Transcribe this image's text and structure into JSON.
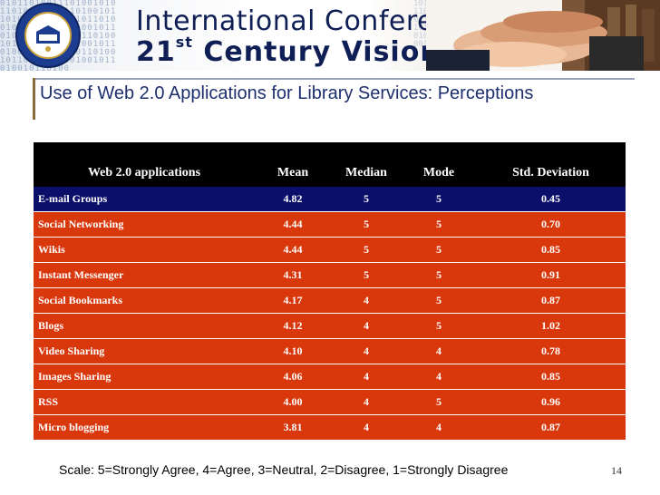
{
  "header": {
    "conference_line1": "International Conference on",
    "conference_line2_num": "21",
    "conference_line2_sup": "st",
    "conference_line2_rest": "Century Vision"
  },
  "slide": {
    "title": "Use of Web 2.0 Applications for Library Services: Perceptions",
    "page_number": "14",
    "scale_note": "Scale: 5=Strongly Agree, 4=Agree, 3=Neutral, 2=Disagree, 1=Strongly Disagree"
  },
  "table": {
    "columns": [
      "Web 2.0 applications",
      "Mean",
      "Median",
      "Mode",
      "Std. Deviation"
    ],
    "rows": [
      [
        "E-mail Groups",
        "4.82",
        "5",
        "5",
        "0.45"
      ],
      [
        "Social Networking",
        "4.44",
        "5",
        "5",
        "0.70"
      ],
      [
        "Wikis",
        "4.44",
        "5",
        "5",
        "0.85"
      ],
      [
        "Instant Messenger",
        "4.31",
        "5",
        "5",
        "0.91"
      ],
      [
        "Social Bookmarks",
        "4.17",
        "4",
        "5",
        "0.87"
      ],
      [
        "Blogs",
        "4.12",
        "4",
        "5",
        "1.02"
      ],
      [
        "Video Sharing",
        "4.10",
        "4",
        "4",
        "0.78"
      ],
      [
        "Images Sharing",
        "4.06",
        "4",
        "4",
        "0.85"
      ],
      [
        "RSS",
        "4.00",
        "4",
        "5",
        "0.96"
      ],
      [
        "Micro blogging",
        "3.81",
        "4",
        "4",
        "0.87"
      ]
    ],
    "row_color": "#d8380c",
    "highlight_color": "#0b0f6a",
    "header_color": "#000000"
  }
}
